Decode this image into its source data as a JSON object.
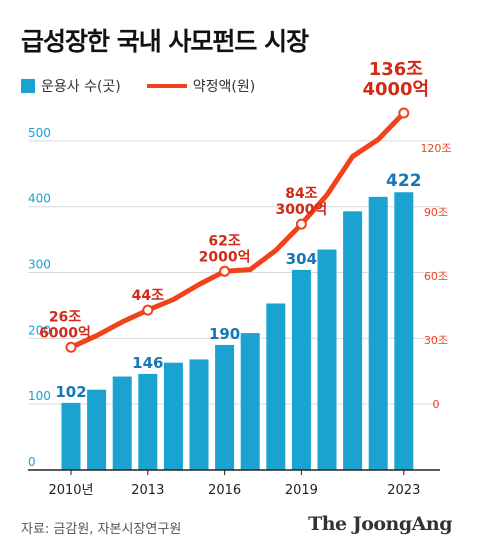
{
  "title": "급성장한 국내 사모펀드 시장",
  "legend": {
    "bars": "운용사 수(곳)",
    "line": "약정액(원)"
  },
  "source": "자료: 금감원, 자본시장연구원",
  "brand": "The JoongAng",
  "colors": {
    "bar": "#1aa2d0",
    "line": "#f0421b",
    "bar_label": "#1577b5",
    "line_label": "#d12a16"
  },
  "chart_data": {
    "type": "bar",
    "x_tick_labels": [
      "2010년",
      "2013",
      "2016",
      "2019",
      "2023"
    ],
    "series": [
      {
        "type": "bar",
        "axis": "left",
        "x": [
          2010,
          2011,
          2012,
          2013,
          2014,
          2015,
          2016,
          2017,
          2018,
          2019,
          2020,
          2021,
          2022,
          2023
        ],
        "values": [
          102,
          122,
          142,
          146,
          163,
          168,
          190,
          208,
          253,
          304,
          335,
          393,
          415,
          422
        ],
        "data_labels": {
          "2010": "102",
          "2013": "146",
          "2016": "190",
          "2019": "304",
          "2023": "422"
        }
      },
      {
        "type": "line",
        "axis": "right",
        "unit": "조",
        "x": [
          2010,
          2011,
          2012,
          2013,
          2014,
          2015,
          2016,
          2017,
          2018,
          2019,
          2020,
          2021,
          2022,
          2023
        ],
        "values": [
          26.6,
          32,
          38.5,
          44,
          49,
          56,
          62.2,
          63,
          72,
          84.3,
          98,
          116,
          124,
          136.4
        ],
        "markers": [
          2010,
          2013,
          2016,
          2019,
          2023
        ],
        "data_labels": [
          {
            "year": 2010,
            "lines": [
              "26조",
              "6000억"
            ]
          },
          {
            "year": 2013,
            "lines": [
              "44조"
            ]
          },
          {
            "year": 2016,
            "lines": [
              "62조",
              "2000억"
            ]
          },
          {
            "year": 2019,
            "lines": [
              "84조",
              "3000억"
            ]
          },
          {
            "year": 2023,
            "lines": [
              "136조",
              "4000억"
            ]
          }
        ]
      }
    ],
    "left_axis": {
      "ylim": [
        0,
        550
      ],
      "ticks": [
        "0",
        "100",
        "200",
        "300",
        "400",
        "500"
      ],
      "tick_values": [
        0,
        100,
        200,
        300,
        400,
        500
      ]
    },
    "right_axis": {
      "ylim": [
        -20,
        145
      ],
      "ticks": [
        "0",
        "30조",
        "60조",
        "90조",
        "120조"
      ],
      "tick_values": [
        0,
        30,
        60,
        90,
        120
      ]
    },
    "grid": true
  }
}
